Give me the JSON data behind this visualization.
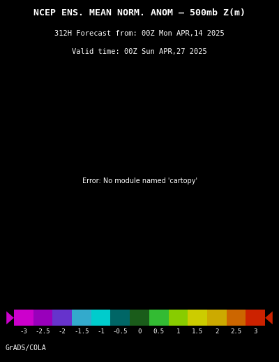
{
  "title_line1": "NCEP ENS. MEAN NORM. ANOM – 500mb Z(m)",
  "title_line2": "312H Forecast from: 00Z Mon APR,14 2025",
  "title_line3": "Valid time: 00Z Sun APR,27 2025",
  "background_color": "#000000",
  "colorbar_colors": [
    "#cc00cc",
    "#9900bb",
    "#6633cc",
    "#33aacc",
    "#00cccc",
    "#006666",
    "#1a5c1a",
    "#33bb33",
    "#88cc00",
    "#cccc00",
    "#ccaa00",
    "#cc6600",
    "#cc2200"
  ],
  "colorbar_labels": [
    "-3",
    "-2.5",
    "-2",
    "-1.5",
    "-1",
    "-0.5",
    "0",
    "0.5",
    "1",
    "1.5",
    "2",
    "2.5",
    "3"
  ],
  "footer_text": "GrADS/COLA",
  "title_color": "#ffffff",
  "footer_color": "#ffffff",
  "colorbar_label_color": "#ffffff",
  "map_bg_color": "#1e5c1e"
}
